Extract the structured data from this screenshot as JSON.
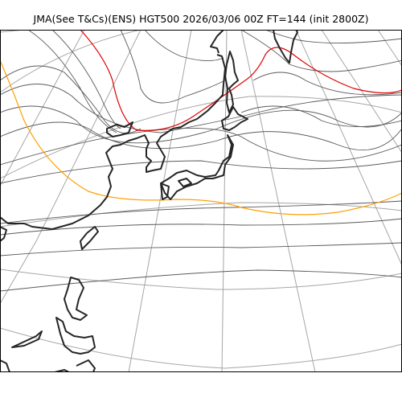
{
  "title": "JMA(See T&Cs)(ENS) HGT500 2026/03/06 00Z FT=144 (init 2800Z)",
  "colors": {
    "background": "#ffffff",
    "graticule": "#a6a6a6",
    "contour": "#5a5a5a",
    "contour_5400": "#ff9f00",
    "contour_5700": "#e00000",
    "coastline": "#262626"
  }
}
